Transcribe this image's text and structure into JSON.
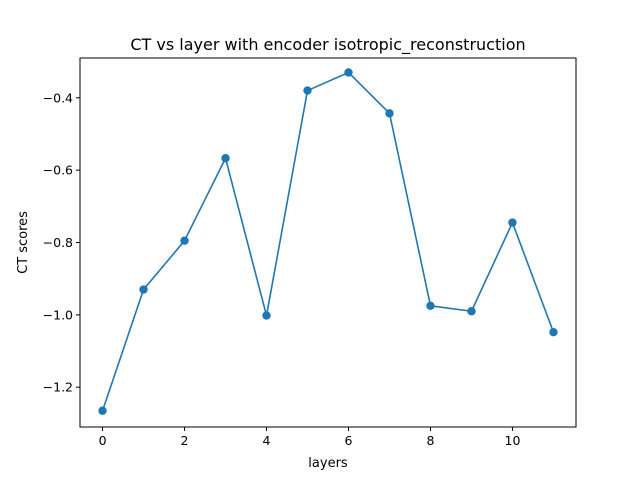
{
  "chart_data": {
    "type": "line",
    "title": "CT vs layer with encoder isotropic_reconstruction",
    "xlabel": "layers",
    "ylabel": "CT scores",
    "xlim": [
      -0.55,
      11.55
    ],
    "ylim": [
      -1.31,
      -0.29
    ],
    "xticks": [
      0,
      2,
      4,
      6,
      8,
      10
    ],
    "yticks": [
      -1.2,
      -1.0,
      -0.8,
      -0.6,
      -0.4
    ],
    "xtick_labels": [
      "0",
      "2",
      "4",
      "6",
      "8",
      "10"
    ],
    "ytick_labels": [
      "−1.2",
      "−1.0",
      "−0.8",
      "−0.6",
      "−0.4"
    ],
    "grid": false,
    "series": [
      {
        "color": "#1f77b4",
        "marker": "circle",
        "x": [
          0,
          1,
          2,
          3,
          4,
          5,
          6,
          7,
          8,
          9,
          10,
          11
        ],
        "y": [
          -1.265,
          -0.93,
          -0.795,
          -0.567,
          -1.002,
          -0.38,
          -0.33,
          -0.443,
          -0.975,
          -0.99,
          -0.745,
          -1.048
        ]
      }
    ]
  }
}
